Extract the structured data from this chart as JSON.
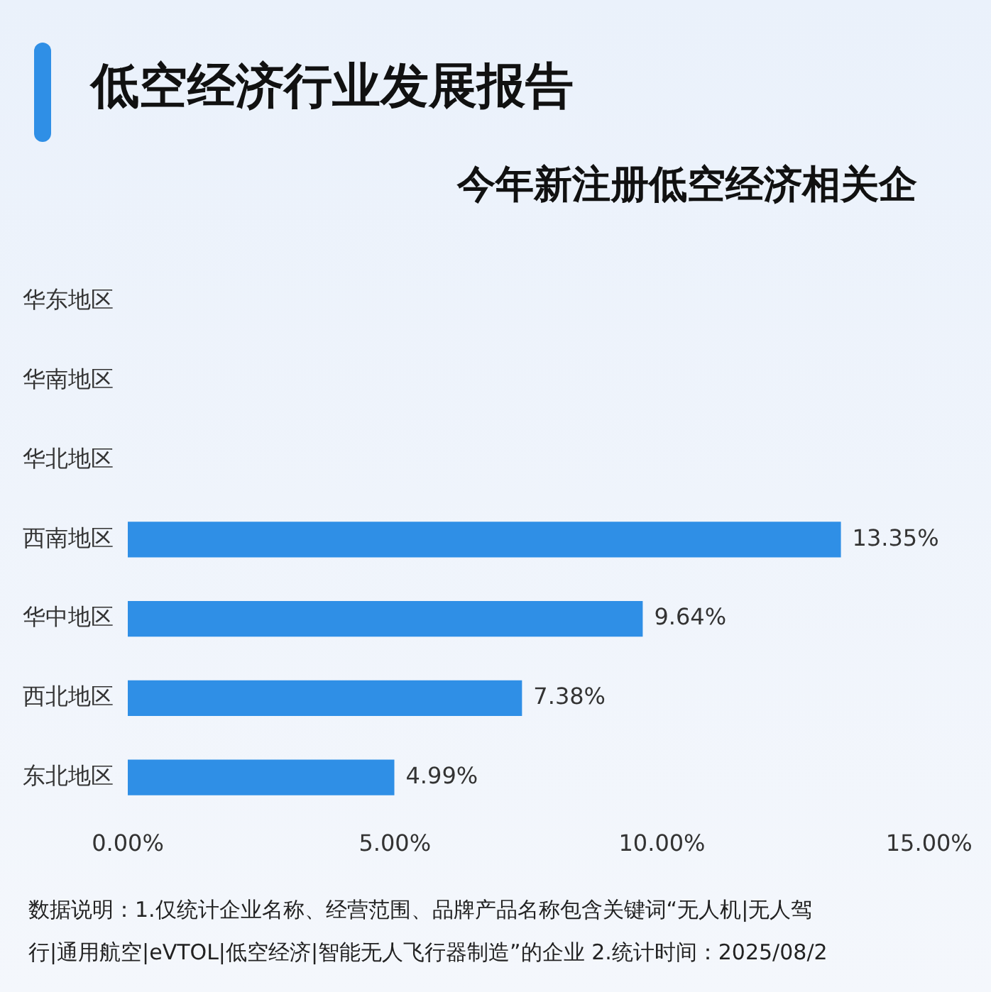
{
  "chart_data": {
    "type": "bar",
    "orientation": "horizontal",
    "title": "低空经济行业发展报告",
    "subtitle": "今年新注册低空经济相关企",
    "categories": [
      "华东地区",
      "华南地区",
      "华北地区",
      "西南地区",
      "华中地区",
      "西北地区",
      "东北地区"
    ],
    "values": [
      null,
      null,
      null,
      13.35,
      9.64,
      7.38,
      4.99
    ],
    "value_labels": [
      null,
      null,
      null,
      "13.35%",
      "9.64%",
      "7.38%",
      "4.99%"
    ],
    "color": "#2f8fe6",
    "xlim": [
      0,
      16
    ],
    "xticks": [
      {
        "value": 0,
        "label": "0.00%"
      },
      {
        "value": 5,
        "label": "5.00%"
      },
      {
        "value": 10,
        "label": "10.00%"
      },
      {
        "value": 15,
        "label": "15.00%"
      }
    ],
    "grid": false,
    "legend": false,
    "annotations": [
      "数据说明：1.仅统计企业名称、经营范围、品牌产品名称包含关键词“无人机|无人驾",
      "行|通用航空|eVTOL|低空经济|智能无人飞行器制造”的企业  2.统计时间：2025/08/2"
    ]
  }
}
